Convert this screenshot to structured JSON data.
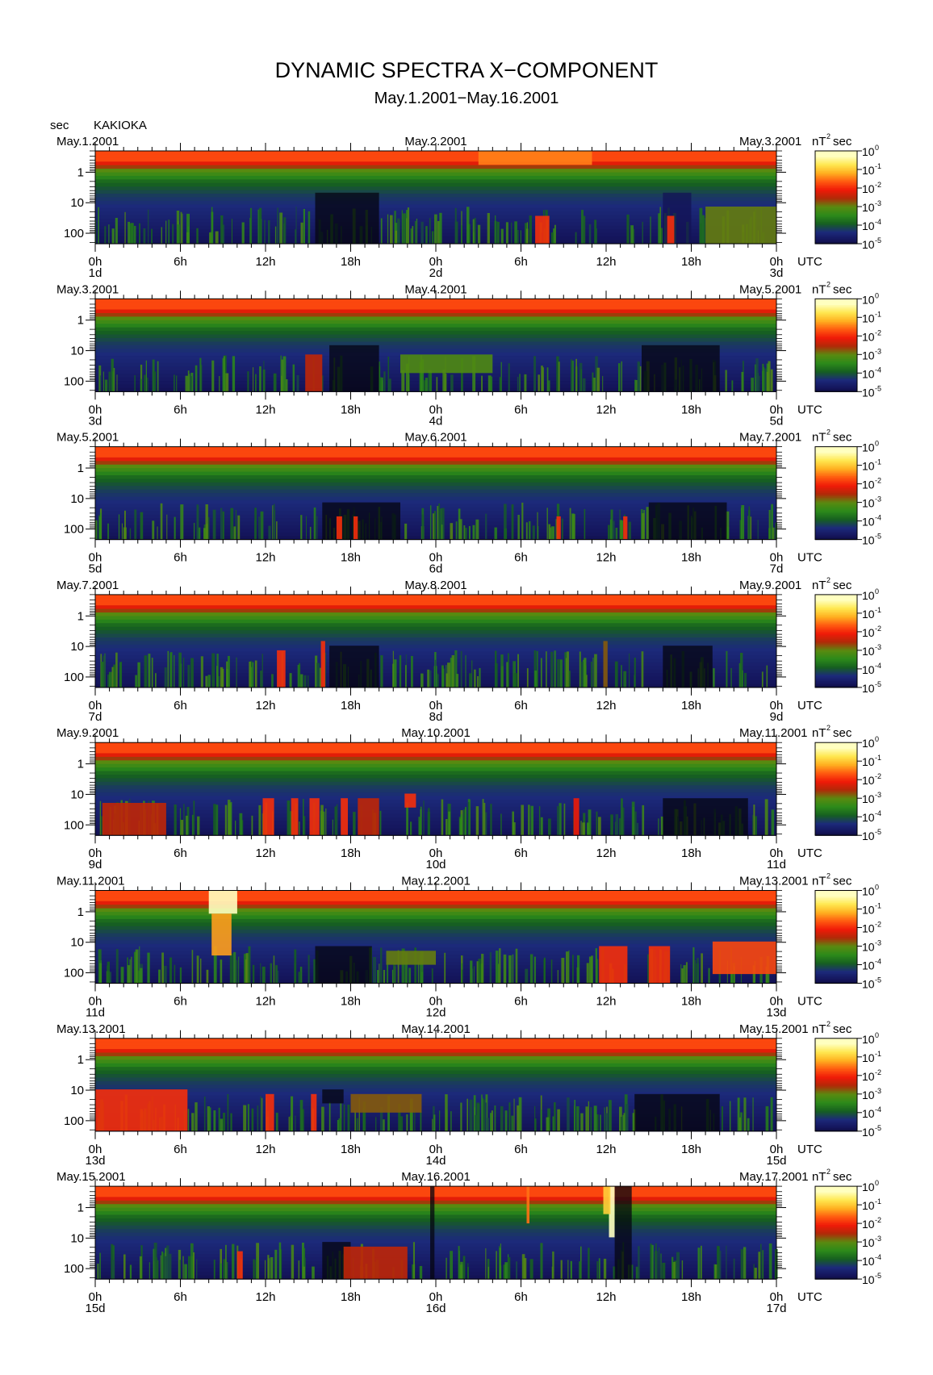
{
  "title": "DYNAMIC SPECTRA X−COMPONENT",
  "subtitle": "May.1.2001−May.16.2001",
  "yunit": "sec",
  "station": "KAKIOKA",
  "cbar_unit": "nT",
  "cbar_unit_exp": "2",
  "cbar_unit_suffix": "sec",
  "utc_label": "UTC",
  "colors": {
    "scale": [
      "#050510",
      "#14145a",
      "#1c2a7a",
      "#166020",
      "#2c8a1a",
      "#5a8a10",
      "#b02a08",
      "#f01a08",
      "#ff5a10",
      "#ffb020",
      "#ffe850",
      "#ffffc0"
    ]
  },
  "chart_data": [
    {
      "type": "heatmap",
      "dates": [
        "May.1.2001",
        "May.2.2001",
        "May.3.2001"
      ],
      "day_marks": [
        "1d",
        "2d",
        "3d"
      ],
      "x_ticks": [
        "0h",
        "6h",
        "12h",
        "18h",
        "0h",
        "6h",
        "12h",
        "18h",
        "0h"
      ],
      "y_ticks": [
        "1",
        "10",
        "100"
      ],
      "ylabel": "sec",
      "xlabel": "UTC",
      "colorbar": {
        "ticks": [
          "-5",
          "-4",
          "-3",
          "-2",
          "-1",
          "0"
        ],
        "base": "10"
      },
      "events": [
        {
          "t0": 15.5,
          "t1": 20.0,
          "p0": 0.45,
          "p1": 1.0,
          "level": -6
        },
        {
          "t0": 27.0,
          "t1": 35.0,
          "p0": 0.0,
          "p1": 0.15,
          "level": -1.4
        },
        {
          "t0": 40.0,
          "t1": 42.0,
          "p0": 0.45,
          "p1": 1.0,
          "level": -5.5
        },
        {
          "t0": 31.0,
          "t1": 32.0,
          "p0": 0.7,
          "p1": 1.0,
          "level": -2.0
        },
        {
          "t0": 40.3,
          "t1": 40.8,
          "p0": 0.7,
          "p1": 1.0,
          "level": -2.0
        },
        {
          "t0": 43.0,
          "t1": 48.0,
          "p0": 0.6,
          "p1": 1.0,
          "level": -3.2
        }
      ]
    },
    {
      "type": "heatmap",
      "dates": [
        "May.3.2001",
        "May.4.2001",
        "May.5.2001"
      ],
      "day_marks": [
        "3d",
        "4d",
        "5d"
      ],
      "x_ticks": [
        "0h",
        "6h",
        "12h",
        "18h",
        "0h",
        "6h",
        "12h",
        "18h",
        "0h"
      ],
      "y_ticks": [
        "1",
        "10",
        "100"
      ],
      "ylabel": "sec",
      "xlabel": "UTC",
      "colorbar": {
        "ticks": [
          "-5",
          "-4",
          "-3",
          "-2",
          "-1",
          "0"
        ],
        "base": "10"
      },
      "events": [
        {
          "t0": 16.5,
          "t1": 20.0,
          "p0": 0.5,
          "p1": 1.0,
          "level": -6
        },
        {
          "t0": 38.5,
          "t1": 44.0,
          "p0": 0.5,
          "p1": 1.0,
          "level": -6
        },
        {
          "t0": 14.8,
          "t1": 16.0,
          "p0": 0.6,
          "p1": 1.0,
          "level": -2.6
        },
        {
          "t0": 21.5,
          "t1": 28.0,
          "p0": 0.6,
          "p1": 0.8,
          "level": -3.4
        }
      ]
    },
    {
      "type": "heatmap",
      "dates": [
        "May.5.2001",
        "May.6.2001",
        "May.7.2001"
      ],
      "day_marks": [
        "5d",
        "6d",
        "7d"
      ],
      "x_ticks": [
        "0h",
        "6h",
        "12h",
        "18h",
        "0h",
        "6h",
        "12h",
        "18h",
        "0h"
      ],
      "y_ticks": [
        "1",
        "10",
        "100"
      ],
      "ylabel": "sec",
      "xlabel": "UTC",
      "colorbar": {
        "ticks": [
          "-5",
          "-4",
          "-3",
          "-2",
          "-1",
          "0"
        ],
        "base": "10"
      },
      "events": [
        {
          "t0": 16.0,
          "t1": 21.5,
          "p0": 0.6,
          "p1": 1.0,
          "level": -6
        },
        {
          "t0": 39.0,
          "t1": 44.5,
          "p0": 0.6,
          "p1": 1.0,
          "level": -6
        },
        {
          "t0": 17.0,
          "t1": 17.4,
          "p0": 0.75,
          "p1": 1.0,
          "level": -2.0
        },
        {
          "t0": 18.2,
          "t1": 18.5,
          "p0": 0.75,
          "p1": 1.0,
          "level": -2.0
        },
        {
          "t0": 32.5,
          "t1": 32.8,
          "p0": 0.75,
          "p1": 1.0,
          "level": -2.0
        },
        {
          "t0": 37.2,
          "t1": 37.5,
          "p0": 0.75,
          "p1": 1.0,
          "level": -2.0
        }
      ]
    },
    {
      "type": "heatmap",
      "dates": [
        "May.7.2001",
        "May.8.2001",
        "May.9.2001"
      ],
      "day_marks": [
        "7d",
        "8d",
        "9d"
      ],
      "x_ticks": [
        "0h",
        "6h",
        "12h",
        "18h",
        "0h",
        "6h",
        "12h",
        "18h",
        "0h"
      ],
      "y_ticks": [
        "1",
        "10",
        "100"
      ],
      "ylabel": "sec",
      "xlabel": "UTC",
      "colorbar": {
        "ticks": [
          "-5",
          "-4",
          "-3",
          "-2",
          "-1",
          "0"
        ],
        "base": "10"
      },
      "events": [
        {
          "t0": 16.5,
          "t1": 20.0,
          "p0": 0.55,
          "p1": 1.0,
          "level": -6
        },
        {
          "t0": 40.0,
          "t1": 43.5,
          "p0": 0.55,
          "p1": 1.0,
          "level": -6
        },
        {
          "t0": 12.8,
          "t1": 13.4,
          "p0": 0.6,
          "p1": 1.0,
          "level": -2.0
        },
        {
          "t0": 15.9,
          "t1": 16.2,
          "p0": 0.5,
          "p1": 1.0,
          "level": -2.0
        },
        {
          "t0": 35.8,
          "t1": 36.1,
          "p0": 0.5,
          "p1": 1.0,
          "level": -3.0
        }
      ]
    },
    {
      "type": "heatmap",
      "dates": [
        "May.9.2001",
        "May.10.2001",
        "May.11.2001"
      ],
      "day_marks": [
        "9d",
        "10d",
        "11d"
      ],
      "x_ticks": [
        "0h",
        "6h",
        "12h",
        "18h",
        "0h",
        "6h",
        "12h",
        "18h",
        "0h"
      ],
      "y_ticks": [
        "1",
        "10",
        "100"
      ],
      "ylabel": "sec",
      "xlabel": "UTC",
      "colorbar": {
        "ticks": [
          "-5",
          "-4",
          "-3",
          "-2",
          "-1",
          "0"
        ],
        "base": "10"
      },
      "events": [
        {
          "t0": 40.0,
          "t1": 46.0,
          "p0": 0.6,
          "p1": 1.0,
          "level": -6
        },
        {
          "t0": 0.5,
          "t1": 5.0,
          "p0": 0.65,
          "p1": 1.0,
          "level": -2.6
        },
        {
          "t0": 11.8,
          "t1": 12.6,
          "p0": 0.6,
          "p1": 1.0,
          "level": -2.0
        },
        {
          "t0": 13.8,
          "t1": 14.3,
          "p0": 0.6,
          "p1": 1.0,
          "level": -2.0
        },
        {
          "t0": 15.1,
          "t1": 15.8,
          "p0": 0.6,
          "p1": 1.0,
          "level": -2.0
        },
        {
          "t0": 17.3,
          "t1": 17.8,
          "p0": 0.6,
          "p1": 1.0,
          "level": -2.0
        },
        {
          "t0": 21.8,
          "t1": 22.6,
          "p0": 0.55,
          "p1": 0.7,
          "level": -2.0
        },
        {
          "t0": 18.5,
          "t1": 20.0,
          "p0": 0.6,
          "p1": 1.0,
          "level": -2.6
        },
        {
          "t0": 33.7,
          "t1": 34.1,
          "p0": 0.6,
          "p1": 1.0,
          "level": -2.2
        }
      ]
    },
    {
      "type": "heatmap",
      "dates": [
        "May.11.2001",
        "May.12.2001",
        "May.13.2001"
      ],
      "day_marks": [
        "11d",
        "12d",
        "13d"
      ],
      "x_ticks": [
        "0h",
        "6h",
        "12h",
        "18h",
        "0h",
        "6h",
        "12h",
        "18h",
        "0h"
      ],
      "y_ticks": [
        "1",
        "10",
        "100"
      ],
      "ylabel": "sec",
      "xlabel": "UTC",
      "colorbar": {
        "ticks": [
          "-5",
          "-4",
          "-3",
          "-2",
          "-1",
          "0"
        ],
        "base": "10"
      },
      "events": [
        {
          "t0": 15.5,
          "t1": 19.5,
          "p0": 0.6,
          "p1": 1.0,
          "level": -6
        },
        {
          "t0": 8.0,
          "t1": 10.0,
          "p0": 0.0,
          "p1": 0.25,
          "level": 0
        },
        {
          "t0": 8.2,
          "t1": 9.6,
          "p0": 0.25,
          "p1": 0.7,
          "level": -1.2
        },
        {
          "t0": 20.5,
          "t1": 24.0,
          "p0": 0.65,
          "p1": 0.8,
          "level": -3.2
        },
        {
          "t0": 35.5,
          "t1": 37.5,
          "p0": 0.6,
          "p1": 1.0,
          "level": -2.0
        },
        {
          "t0": 39.0,
          "t1": 40.5,
          "p0": 0.6,
          "p1": 1.0,
          "level": -2.0
        },
        {
          "t0": 43.5,
          "t1": 48.0,
          "p0": 0.55,
          "p1": 0.9,
          "level": -1.8
        }
      ]
    },
    {
      "type": "heatmap",
      "dates": [
        "May.13.2001",
        "May.14.2001",
        "May.15.2001"
      ],
      "day_marks": [
        "13d",
        "14d",
        "15d"
      ],
      "x_ticks": [
        "0h",
        "6h",
        "12h",
        "18h",
        "0h",
        "6h",
        "12h",
        "18h",
        "0h"
      ],
      "y_ticks": [
        "1",
        "10",
        "100"
      ],
      "ylabel": "sec",
      "xlabel": "UTC",
      "colorbar": {
        "ticks": [
          "-5",
          "-4",
          "-3",
          "-2",
          "-1",
          "0"
        ],
        "base": "10"
      },
      "events": [
        {
          "t0": 16.0,
          "t1": 17.5,
          "p0": 0.55,
          "p1": 0.7,
          "level": -6
        },
        {
          "t0": 38.0,
          "t1": 44.0,
          "p0": 0.6,
          "p1": 1.0,
          "level": -6
        },
        {
          "t0": 0.0,
          "t1": 6.5,
          "p0": 0.55,
          "p1": 1.0,
          "level": -2.0
        },
        {
          "t0": 12.0,
          "t1": 12.6,
          "p0": 0.6,
          "p1": 1.0,
          "level": -2.0
        },
        {
          "t0": 15.2,
          "t1": 15.6,
          "p0": 0.6,
          "p1": 1.0,
          "level": -2.0
        },
        {
          "t0": 18.0,
          "t1": 23.0,
          "p0": 0.6,
          "p1": 0.8,
          "level": -3.0
        }
      ]
    },
    {
      "type": "heatmap",
      "dates": [
        "May.15.2001",
        "May.16.2001",
        "May.17.2001"
      ],
      "day_marks": [
        "15d",
        "16d",
        "17d"
      ],
      "x_ticks": [
        "0h",
        "6h",
        "12h",
        "18h",
        "0h",
        "6h",
        "12h",
        "18h",
        "0h"
      ],
      "y_ticks": [
        "1",
        "10",
        "100"
      ],
      "ylabel": "sec",
      "xlabel": "UTC",
      "colorbar": {
        "ticks": [
          "-5",
          "-4",
          "-3",
          "-2",
          "-1",
          "0"
        ],
        "base": "10"
      },
      "events": [
        {
          "t0": 23.6,
          "t1": 23.9,
          "p0": 0.0,
          "p1": 1.0,
          "level": -6
        },
        {
          "t0": 36.6,
          "t1": 37.8,
          "p0": 0.0,
          "p1": 1.0,
          "level": -6
        },
        {
          "t0": 36.2,
          "t1": 36.6,
          "p0": 0.0,
          "p1": 0.55,
          "level": 0
        },
        {
          "t0": 35.8,
          "t1": 36.3,
          "p0": 0.0,
          "p1": 0.3,
          "level": -0.8
        },
        {
          "t0": 30.4,
          "t1": 30.6,
          "p0": 0.0,
          "p1": 0.4,
          "level": -1.5
        },
        {
          "t0": 16.0,
          "t1": 18.0,
          "p0": 0.6,
          "p1": 1.0,
          "level": -6
        },
        {
          "t0": 10.0,
          "t1": 10.4,
          "p0": 0.7,
          "p1": 1.0,
          "level": -2.0
        },
        {
          "t0": 17.5,
          "t1": 22.0,
          "p0": 0.65,
          "p1": 1.0,
          "level": -2.6
        }
      ]
    }
  ]
}
